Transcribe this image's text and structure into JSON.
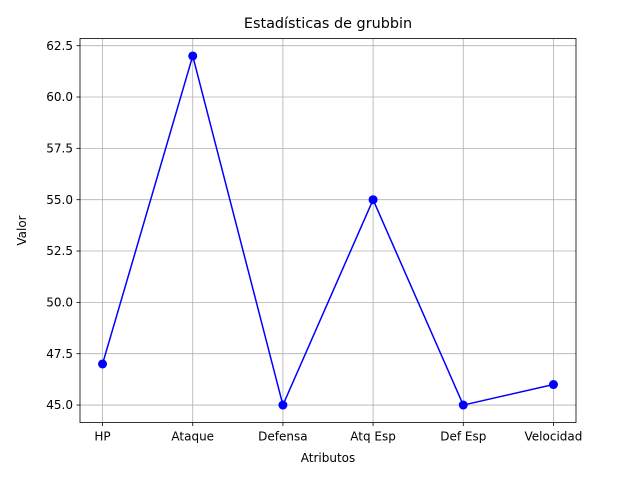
{
  "chart_data": {
    "type": "line",
    "title": "Estadísticas de grubbin",
    "xlabel": "Atributos",
    "ylabel": "Valor",
    "categories": [
      "HP",
      "Ataque",
      "Defensa",
      "Atq Esp",
      "Def Esp",
      "Velocidad"
    ],
    "series": [
      {
        "values": [
          47,
          62,
          45,
          55,
          45,
          46
        ]
      }
    ],
    "ylim": [
      44.15,
      62.85
    ],
    "yticks": [
      45.0,
      47.5,
      50.0,
      52.5,
      55.0,
      57.5,
      60.0,
      62.5
    ],
    "ytick_labels": [
      "45.0",
      "47.5",
      "50.0",
      "52.5",
      "55.0",
      "57.5",
      "60.0",
      "62.5"
    ],
    "grid": true,
    "colors": {
      "line": "#0000ff",
      "marker": "#0000ff",
      "grid": "#b0b0b0"
    }
  }
}
